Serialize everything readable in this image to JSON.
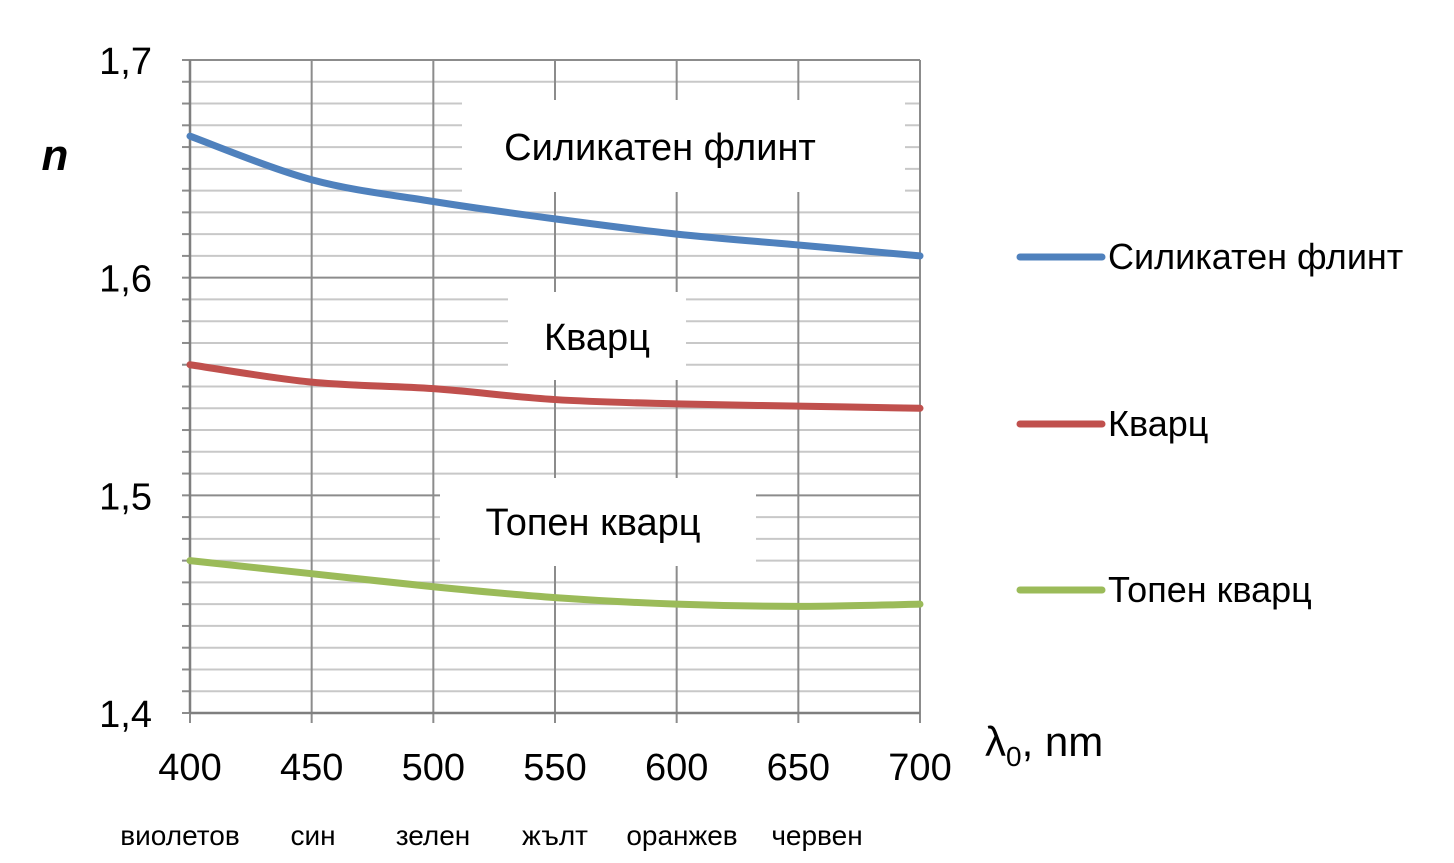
{
  "chart_data": {
    "type": "line",
    "ylabel": "n",
    "xlabel": "λ",
    "xlabel_subscript": "0",
    "xlabel_unit": ", nm",
    "x": [
      400,
      450,
      500,
      550,
      600,
      650,
      700
    ],
    "x_tick_labels": [
      "400",
      "450",
      "500",
      "550",
      "600",
      "650",
      "700"
    ],
    "color_names": [
      "виолетов",
      "син",
      "зелен",
      "жълт",
      "оранжев",
      "червен"
    ],
    "y_tick_labels": [
      "1,4",
      "1,5",
      "1,6",
      "1,7"
    ],
    "ylim": [
      1.4,
      1.7
    ],
    "xlim": [
      400,
      700
    ],
    "grid": true,
    "legend_position": "right",
    "series": [
      {
        "name": "Силикатен флинт",
        "color": "#4f81bd",
        "values": [
          1.665,
          1.645,
          1.635,
          1.627,
          1.62,
          1.615,
          1.61
        ],
        "annotation": "Силикатен флинт"
      },
      {
        "name": "Кварц",
        "color": "#c0504d",
        "values": [
          1.56,
          1.552,
          1.549,
          1.544,
          1.542,
          1.541,
          1.54
        ],
        "annotation": "Кварц"
      },
      {
        "name": "Топен кварц",
        "color": "#9bbb59",
        "values": [
          1.47,
          1.464,
          1.458,
          1.453,
          1.45,
          1.449,
          1.45
        ],
        "annotation": "Топен кварц"
      }
    ]
  }
}
